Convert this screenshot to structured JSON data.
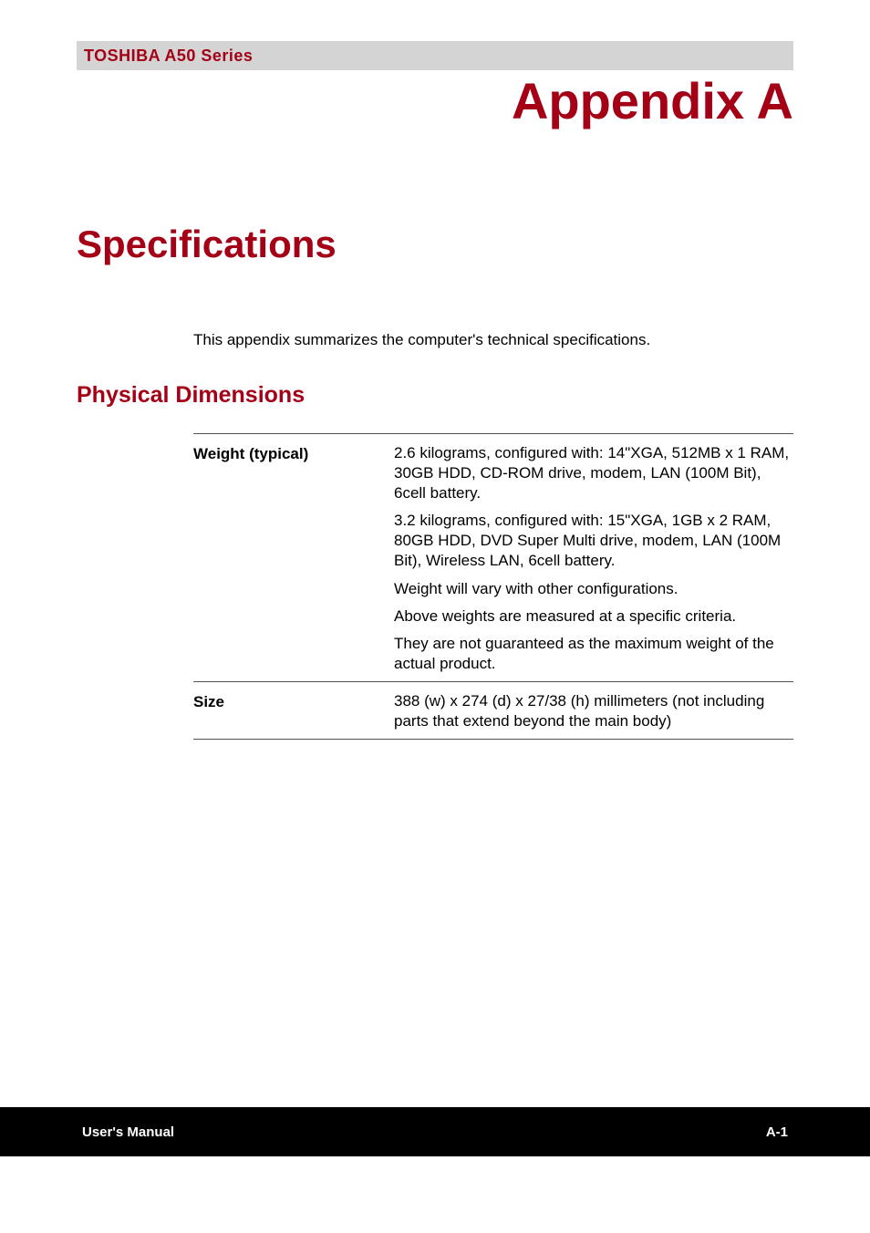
{
  "header": {
    "series": "TOSHIBA A50 Series"
  },
  "appendix_title": "Appendix A",
  "section_title": "Specifications",
  "intro": "This appendix summarizes the computer's technical specifications.",
  "subsection_title": "Physical Dimensions",
  "table": {
    "rows": [
      {
        "label": "Weight (typical)",
        "values": [
          "2.6 kilograms, configured with: 14\"XGA, 512MB x 1 RAM, 30GB HDD, CD-ROM drive, modem, LAN (100M Bit), 6cell battery.",
          "3.2 kilograms, configured with: 15\"XGA, 1GB x 2 RAM, 80GB HDD, DVD Super Multi drive, modem, LAN (100M Bit), Wireless LAN, 6cell battery.",
          "Weight will vary with other configurations.",
          "Above weights are measured at a specific criteria.",
          "They are not guaranteed as the maximum weight of the actual product."
        ]
      },
      {
        "label": "Size",
        "values": [
          "388 (w) x 274 (d) x 27/38 (h) millimeters (not including parts that extend beyond the main body)"
        ]
      }
    ]
  },
  "footer": {
    "left": "User's Manual",
    "right": "A-1"
  },
  "colors": {
    "accent": "#a40016",
    "header_bg": "#d4d4d4",
    "footer_bg": "#000000",
    "footer_text": "#ffffff",
    "body_text": "#000000",
    "border": "#555555",
    "page_bg": "#ffffff"
  }
}
